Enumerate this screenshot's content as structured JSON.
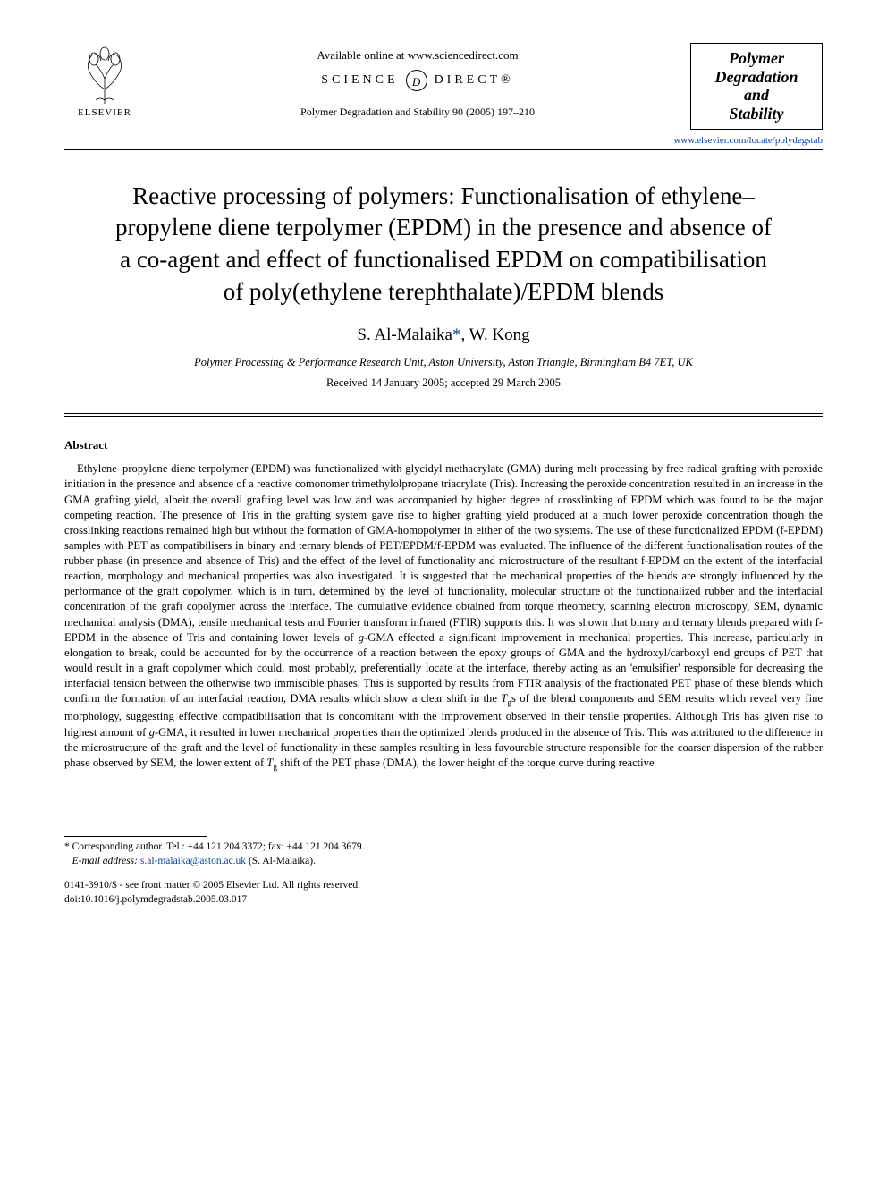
{
  "header": {
    "publisher_label": "ELSEVIER",
    "available_text": "Available online at www.sciencedirect.com",
    "science_direct_left": "SCIENCE",
    "science_direct_right": "DIRECT®",
    "journal_reference": "Polymer Degradation and Stability 90 (2005) 197–210",
    "journal_box_line1": "Polymer",
    "journal_box_line2": "Degradation",
    "journal_box_line3": "and",
    "journal_box_line4": "Stability",
    "journal_url": "www.elsevier.com/locate/polydegstab"
  },
  "article": {
    "title": "Reactive processing of polymers: Functionalisation of ethylene–propylene diene terpolymer (EPDM) in the presence and absence of a co-agent and effect of functionalised EPDM on compatibilisation of poly(ethylene terephthalate)/EPDM blends",
    "author1": "S. Al-Malaika",
    "author_sep": ", ",
    "author2": "W. Kong",
    "corresponding_marker": "*",
    "affiliation": "Polymer Processing & Performance Research Unit, Aston University, Aston Triangle, Birmingham B4 7ET, UK",
    "dates": "Received 14 January 2005; accepted 29 March 2005"
  },
  "abstract": {
    "heading": "Abstract",
    "body_html": "Ethylene–propylene diene terpolymer (EPDM) was functionalized with glycidyl methacrylate (GMA) during melt processing by free radical grafting with peroxide initiation in the presence and absence of a reactive comonomer trimethylolpropane triacrylate (Tris). Increasing the peroxide concentration resulted in an increase in the GMA grafting yield, albeit the overall grafting level was low and was accompanied by higher degree of crosslinking of EPDM which was found to be the major competing reaction. The presence of Tris in the grafting system gave rise to higher grafting yield produced at a much lower peroxide concentration though the crosslinking reactions remained high but without the formation of GMA-homopolymer in either of the two systems. The use of these functionalized EPDM (f-EPDM) samples with PET as compatibilisers in binary and ternary blends of PET/EPDM/f-EPDM was evaluated. The influence of the different functionalisation routes of the rubber phase (in presence and absence of Tris) and the effect of the level of functionality and microstructure of the resultant f-EPDM on the extent of the interfacial reaction, morphology and mechanical properties was also investigated. It is suggested that the mechanical properties of the blends are strongly influenced by the performance of the graft copolymer, which is in turn, determined by the level of functionality, molecular structure of the functionalized rubber and the interfacial concentration of the graft copolymer across the interface. The cumulative evidence obtained from torque rheometry, scanning electron microscopy, SEM, dynamic mechanical analysis (DMA), tensile mechanical tests and Fourier transform infrared (FTIR) supports this. It was shown that binary and ternary blends prepared with f-EPDM in the absence of Tris and containing lower levels of <em>g</em>-GMA effected a significant improvement in mechanical properties. This increase, particularly in elongation to break, could be accounted for by the occurrence of a reaction between the epoxy groups of GMA and the hydroxyl/carboxyl end groups of PET that would result in a graft copolymer which could, most probably, preferentially locate at the interface, thereby acting as an 'emulsifier' responsible for decreasing the interfacial tension between the otherwise two immiscible phases. This is supported by results from FTIR analysis of the fractionated PET phase of these blends which confirm the formation of an interfacial reaction, DMA results which show a clear shift in the <em>T</em><span class=\"subscript\">g</span>s of the blend components and SEM results which reveal very fine morphology, suggesting effective compatibilisation that is concomitant with the improvement observed in their tensile properties. Although Tris has given rise to highest amount of <em>g</em>-GMA, it resulted in lower mechanical properties than the optimized blends produced in the absence of Tris. This was attributed to the difference in the microstructure of the graft and the level of functionality in these samples resulting in less favourable structure responsible for the coarser dispersion of the rubber phase observed by SEM, the lower extent of <em>T</em><span class=\"subscript\">g</span> shift of the PET phase (DMA), the lower height of the torque curve during reactive"
  },
  "footnote": {
    "corr_label": "* Corresponding author. Tel.: +44 121 204 3372; fax: +44 121 204 3679.",
    "email_label": "E-mail address:",
    "email": "s.al-malaika@aston.ac.uk",
    "email_attribution": "(S. Al-Malaika)."
  },
  "bottom": {
    "copyright": "0141-3910/$ - see front matter © 2005 Elsevier Ltd. All rights reserved.",
    "doi": "doi:10.1016/j.polymdegradstab.2005.03.017"
  },
  "colors": {
    "text": "#000000",
    "link": "#0645ad",
    "background": "#ffffff"
  }
}
